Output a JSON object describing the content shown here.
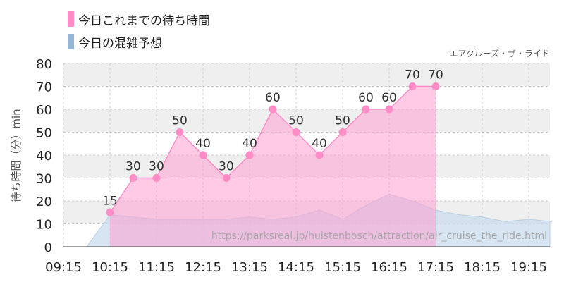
{
  "legend": {
    "actual_label": "今日これまでの待ち時間",
    "forecast_label": "今日の混雑予想"
  },
  "attraction_name": "エアクルーズ・ザ・ライド",
  "watermark": "https://parksreal.jp/huistenbosch/attraction/air_cruise_the_ride.html",
  "colors": {
    "actual_fill": "#ffc6e4",
    "actual_stroke": "#ff8cc6",
    "actual_point": "#ff8cc6",
    "forecast_fill": "#c8dcec",
    "forecast_legend": "#97b6d4",
    "band_shade": "#efefef",
    "grid": "#cccccc"
  },
  "chart_data": {
    "type": "area",
    "xlabel": "",
    "ylabel": "待ち時間（分）min",
    "ylim": [
      0,
      80
    ],
    "y_ticks": [
      0,
      10,
      20,
      30,
      40,
      50,
      60,
      70,
      80
    ],
    "x_ticks": [
      "09:15",
      "10:15",
      "11:15",
      "12:15",
      "13:15",
      "14:15",
      "15:15",
      "16:15",
      "17:15",
      "18:15",
      "19:15"
    ],
    "series": [
      {
        "name": "今日これまでの待ち時間",
        "points": [
          {
            "t": "10:15",
            "v": 15
          },
          {
            "t": "10:45",
            "v": 30
          },
          {
            "t": "11:15",
            "v": 30
          },
          {
            "t": "11:45",
            "v": 50
          },
          {
            "t": "12:15",
            "v": 40
          },
          {
            "t": "12:45",
            "v": 30
          },
          {
            "t": "13:15",
            "v": 40
          },
          {
            "t": "13:45",
            "v": 60
          },
          {
            "t": "14:15",
            "v": 50
          },
          {
            "t": "14:45",
            "v": 40
          },
          {
            "t": "15:15",
            "v": 50
          },
          {
            "t": "15:45",
            "v": 60
          },
          {
            "t": "16:15",
            "v": 60
          },
          {
            "t": "16:45",
            "v": 70
          },
          {
            "t": "17:15",
            "v": 70
          }
        ]
      },
      {
        "name": "今日の混雑予想",
        "points": [
          {
            "t": "09:15",
            "v": 0
          },
          {
            "t": "09:45",
            "v": 0
          },
          {
            "t": "10:15",
            "v": 14
          },
          {
            "t": "10:45",
            "v": 13
          },
          {
            "t": "11:15",
            "v": 12
          },
          {
            "t": "11:45",
            "v": 12
          },
          {
            "t": "12:15",
            "v": 12
          },
          {
            "t": "12:45",
            "v": 12
          },
          {
            "t": "13:15",
            "v": 13
          },
          {
            "t": "13:45",
            "v": 12
          },
          {
            "t": "14:15",
            "v": 13
          },
          {
            "t": "14:45",
            "v": 16
          },
          {
            "t": "15:15",
            "v": 12
          },
          {
            "t": "15:45",
            "v": 18
          },
          {
            "t": "16:15",
            "v": 23
          },
          {
            "t": "16:45",
            "v": 20
          },
          {
            "t": "17:15",
            "v": 16
          },
          {
            "t": "17:45",
            "v": 14
          },
          {
            "t": "18:15",
            "v": 13
          },
          {
            "t": "18:45",
            "v": 11
          },
          {
            "t": "19:15",
            "v": 12
          },
          {
            "t": "19:45",
            "v": 11
          }
        ]
      }
    ]
  }
}
